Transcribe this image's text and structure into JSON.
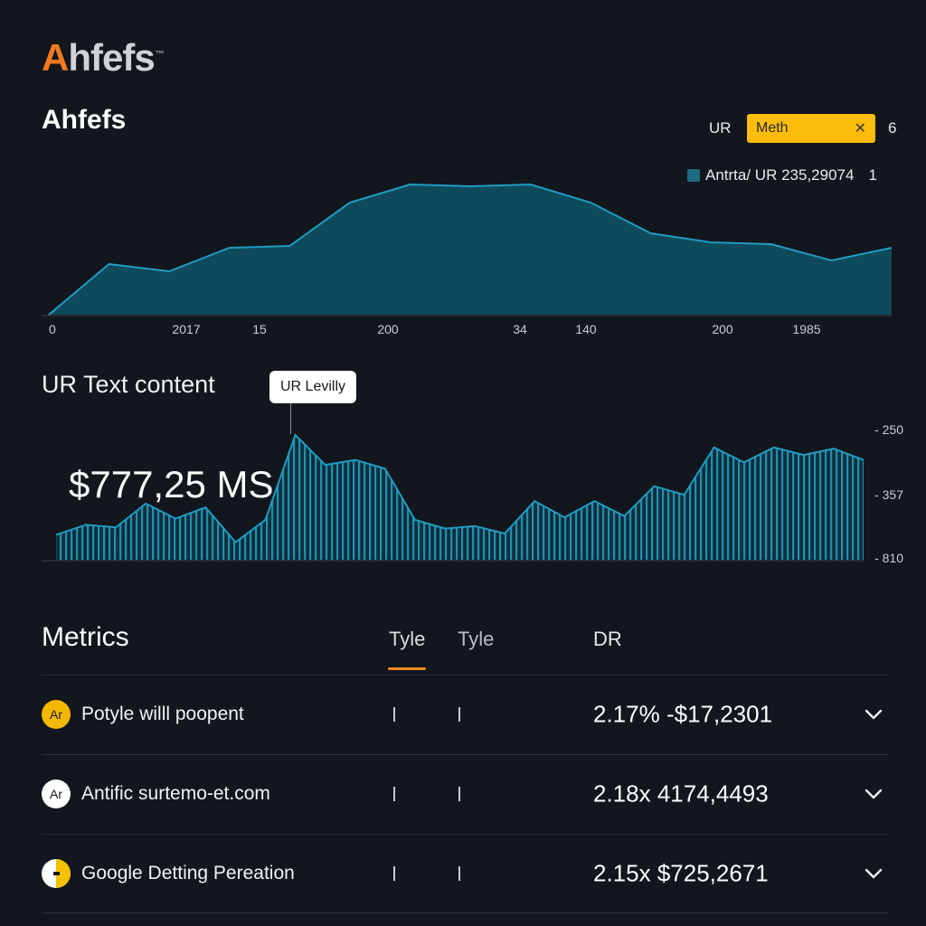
{
  "app": {
    "logo_first": "A",
    "logo_rest": "hfefs",
    "logo_mark": "™"
  },
  "header": {
    "title": "Ahfefs",
    "filter_label": "UR",
    "filter_value": "Meth",
    "filter_count": "6",
    "legend_label": "Antrta/ UR 235,29074",
    "legend_count": "1"
  },
  "colors": {
    "accent": "#fbbd08",
    "brand": "#f47a20",
    "area_fill": "#0d4b5c",
    "area_line": "#1f9cc2",
    "tab_underline": "#f08a1c"
  },
  "chart_data": [
    {
      "type": "area",
      "x_tick_labels": [
        "0",
        "2017",
        "15",
        "200",
        "34",
        "140",
        "200",
        "1985"
      ],
      "values": [
        0,
        28,
        24,
        37,
        38,
        62,
        72,
        71,
        72,
        62,
        45,
        40,
        39,
        30,
        37
      ],
      "ylim": [
        0,
        100
      ],
      "grid": false,
      "legend": "top-right"
    },
    {
      "type": "area",
      "title": "UR Text content",
      "tooltip": "UR Levilly",
      "headline_value": "$777,25 MS",
      "y_tick_labels": [
        "250",
        "357",
        "810"
      ],
      "values": [
        20,
        28,
        26,
        45,
        33,
        42,
        14,
        32,
        100,
        76,
        80,
        73,
        32,
        25,
        27,
        21,
        47,
        34,
        47,
        35,
        59,
        52,
        90,
        78,
        90,
        84,
        89,
        80
      ],
      "ylim": [
        0,
        100
      ],
      "grid": false
    }
  ],
  "metrics": {
    "title": "Metrics",
    "tabs": [
      {
        "label": "Tyle",
        "active": true
      },
      {
        "label": "Tyle",
        "active": false
      }
    ],
    "value_header": "DR",
    "rows": [
      {
        "avatar": "Ar",
        "avatar_color": "#f5b800",
        "name": "Potyle willl poopent",
        "value": "2.17% -$17,2301",
        "chevron_icon": "chevron-down-icon"
      },
      {
        "avatar": "Ar",
        "avatar_color": "#ffffff",
        "name": "Antific surtemo-et.com",
        "value": "2.18x 4174,4493",
        "chevron_icon": "chevron-down-icon"
      },
      {
        "avatar": "",
        "avatar_color": "#f5c000",
        "name": "Google Detting Pereation",
        "value": "2.15x $725,2671",
        "chevron_icon": "chevron-down-icon"
      }
    ]
  }
}
